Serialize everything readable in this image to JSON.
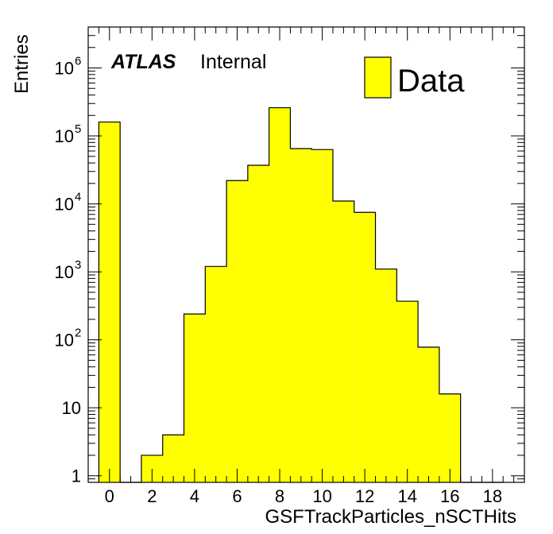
{
  "chart_data": {
    "type": "bar",
    "histogram": true,
    "bin_width": 1,
    "bin_centers": [
      0,
      1,
      2,
      3,
      4,
      5,
      6,
      7,
      8,
      9,
      10,
      11,
      12,
      13,
      14,
      15,
      16,
      17,
      18
    ],
    "series": [
      {
        "name": "Data",
        "color": "#ffff00",
        "values": [
          160000,
          0,
          2,
          4,
          240,
          1200,
          22000,
          37000,
          260000,
          65000,
          63000,
          11000,
          7500,
          1100,
          370,
          78,
          16,
          0,
          0
        ]
      }
    ],
    "xlabel": "GSFTrackParticles_nSCTHits",
    "ylabel": "Entries",
    "xlim": [
      -1,
      19.5
    ],
    "ylim": [
      0.8,
      4000000
    ],
    "yscale": "log",
    "x_ticks": [
      "0",
      "2",
      "4",
      "6",
      "8",
      "10",
      "12",
      "14",
      "16",
      "18"
    ],
    "y_ticks": [
      {
        "value": 1,
        "base": "1",
        "exp": ""
      },
      {
        "value": 10,
        "base": "10",
        "exp": ""
      },
      {
        "value": 100,
        "base": "10",
        "exp": "2"
      },
      {
        "value": 1000,
        "base": "10",
        "exp": "3"
      },
      {
        "value": 10000,
        "base": "10",
        "exp": "4"
      },
      {
        "value": 100000,
        "base": "10",
        "exp": "5"
      },
      {
        "value": 1000000,
        "base": "10",
        "exp": "6"
      }
    ],
    "grid": false,
    "legend_position": "top-right",
    "annotations": {
      "atlas_label": "ATLAS",
      "status_label": "Internal"
    }
  },
  "colors": {
    "fill": "#ffff00",
    "line": "#000000"
  }
}
